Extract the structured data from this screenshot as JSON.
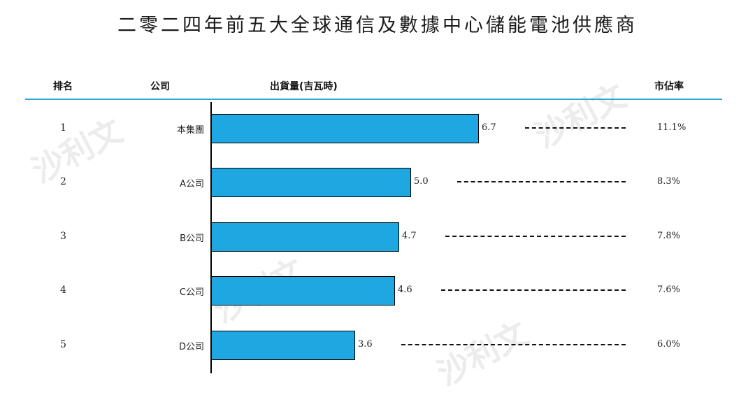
{
  "title": "二零二四年前五大全球通信及數據中心儲能電池供應商",
  "headers": {
    "rank": "排名",
    "company": "公司",
    "shipment": "出貨量(吉瓦時)",
    "share": "市佔率"
  },
  "watermark": "沙利文",
  "colors": {
    "bar": "#1ea7e1",
    "header_rule": "#29a3d9"
  },
  "chart_data": {
    "type": "bar",
    "orientation": "horizontal",
    "title": "二零二四年前五大全球通信及數據中心儲能電池供應商",
    "xlabel": "出貨量(吉瓦時)",
    "ylabel": "",
    "categories": [
      "本集團",
      "A公司",
      "B公司",
      "C公司",
      "D公司"
    ],
    "ranks": [
      "1",
      "2",
      "3",
      "4",
      "5"
    ],
    "values": [
      6.7,
      5.0,
      4.7,
      4.6,
      3.6
    ],
    "value_labels": [
      "6.7",
      "5.0",
      "4.7",
      "4.6",
      "3.6"
    ],
    "market_share": [
      "11.1%",
      "8.3%",
      "7.8%",
      "7.6%",
      "6.0%"
    ],
    "xlim": [
      0,
      6.7
    ],
    "grid": false,
    "legend": "none"
  }
}
